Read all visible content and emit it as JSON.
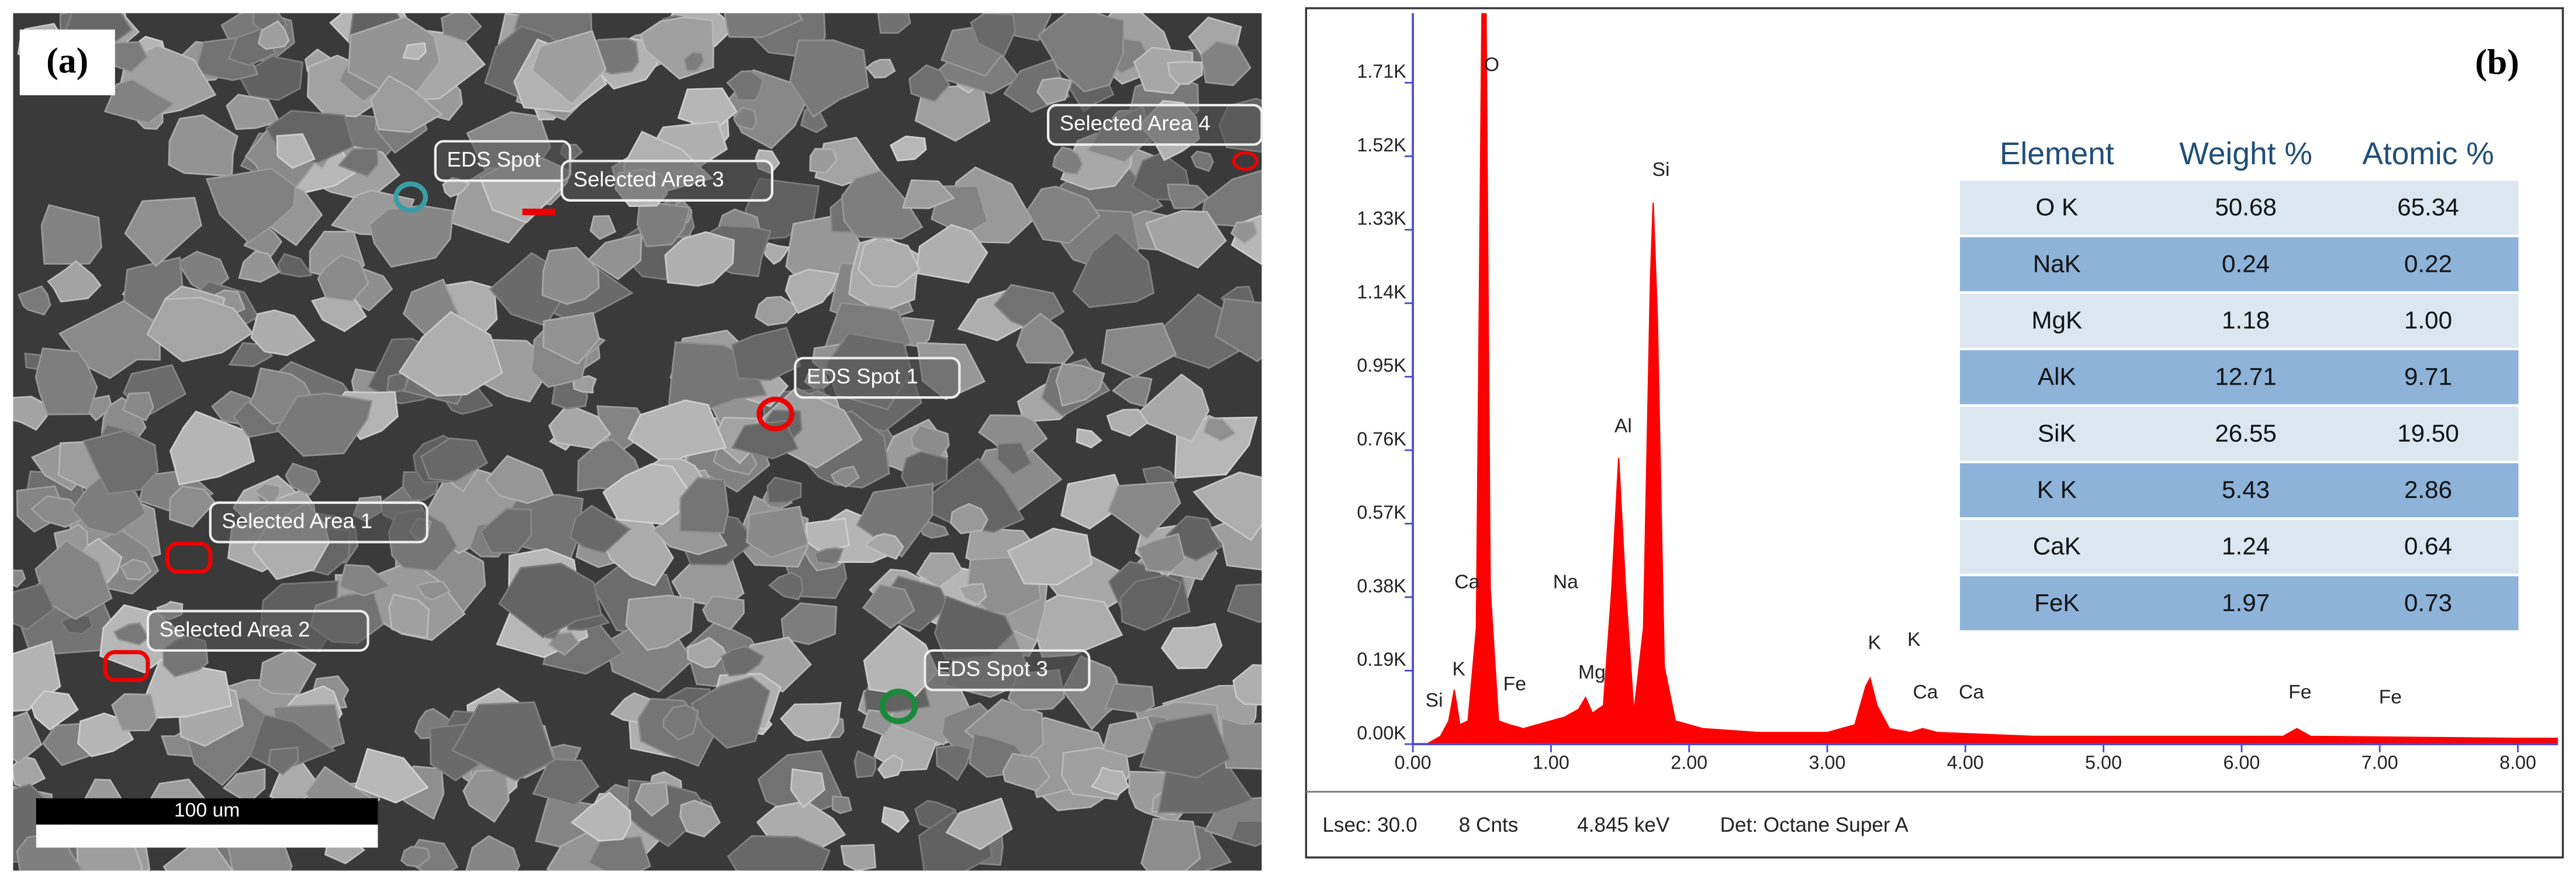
{
  "panel_a": {
    "label": "(a)",
    "scale_bar": "100 um",
    "annotations": [
      "EDS Spot",
      "Selected Area 3",
      "Selected Area 4",
      "EDS Spot 1",
      "Selected Area 1",
      "Selected Area 2",
      "EDS Spot 3"
    ]
  },
  "panel_b": {
    "label": "(b)"
  },
  "chart_data": {
    "type": "area",
    "color": "#ff0000",
    "x": [
      0.1,
      0.2,
      0.26,
      0.3,
      0.34,
      0.4,
      0.46,
      0.5,
      0.53,
      0.56,
      0.62,
      0.7,
      0.8,
      0.9,
      1.0,
      1.1,
      1.2,
      1.25,
      1.3,
      1.38,
      1.44,
      1.49,
      1.54,
      1.6,
      1.67,
      1.72,
      1.74,
      1.77,
      1.82,
      1.9,
      2.1,
      2.5,
      3.0,
      3.2,
      3.28,
      3.31,
      3.36,
      3.45,
      3.6,
      3.69,
      3.8,
      4.5,
      5.5,
      6.3,
      6.4,
      6.5,
      8.0,
      8.29
    ],
    "values": [
      0,
      0.02,
      0.06,
      0.14,
      0.05,
      0.06,
      0.3,
      1.89,
      1.89,
      0.4,
      0.06,
      0.05,
      0.04,
      0.05,
      0.06,
      0.07,
      0.09,
      0.12,
      0.08,
      0.1,
      0.4,
      0.74,
      0.4,
      0.08,
      0.3,
      1.2,
      1.4,
      1.1,
      0.2,
      0.06,
      0.04,
      0.03,
      0.03,
      0.05,
      0.15,
      0.17,
      0.1,
      0.04,
      0.03,
      0.04,
      0.03,
      0.02,
      0.02,
      0.02,
      0.04,
      0.02,
      0.015,
      0.015
    ],
    "xlim": [
      0,
      8.29
    ],
    "ylim": [
      0,
      1.89
    ],
    "xticks": [
      {
        "value": 0,
        "label": "0.00"
      },
      {
        "value": 1,
        "label": "1.00"
      },
      {
        "value": 2,
        "label": "2.00"
      },
      {
        "value": 3,
        "label": "3.00"
      },
      {
        "value": 4,
        "label": "4.00"
      },
      {
        "value": 5,
        "label": "5.00"
      },
      {
        "value": 6,
        "label": "6.00"
      },
      {
        "value": 7,
        "label": "7.00"
      },
      {
        "value": 8,
        "label": "8.00"
      }
    ],
    "yticks": [
      {
        "value": 0,
        "label": "0.00K"
      },
      {
        "value": 0.19,
        "label": "0.19K"
      },
      {
        "value": 0.38,
        "label": "0.38K"
      },
      {
        "value": 0.57,
        "label": "0.57K"
      },
      {
        "value": 0.76,
        "label": "0.76K"
      },
      {
        "value": 0.95,
        "label": "0.95K"
      },
      {
        "value": 1.14,
        "label": "1.14K"
      },
      {
        "value": 1.33,
        "label": "1.33K"
      },
      {
        "value": 1.52,
        "label": "1.52K"
      },
      {
        "value": 1.71,
        "label": "1.71K"
      }
    ],
    "peak_labels": [
      "Si",
      "K",
      "Ca",
      "O",
      "Fe",
      "Na",
      "Mg",
      "Al",
      "Si",
      "K",
      "K",
      "Ca",
      "Ca",
      "Fe",
      "Fe"
    ]
  },
  "table": {
    "header": [
      "Element",
      "Weight %",
      "Atomic %"
    ],
    "rows": [
      [
        "O K",
        "50.68",
        "65.34"
      ],
      [
        "NaK",
        "0.24",
        "0.22"
      ],
      [
        "MgK",
        "1.18",
        "1.00"
      ],
      [
        "AlK",
        "12.71",
        "9.71"
      ],
      [
        "SiK",
        "26.55",
        "19.50"
      ],
      [
        "K K",
        "5.43",
        "2.86"
      ],
      [
        "CaK",
        "1.24",
        "0.64"
      ],
      [
        "FeK",
        "1.97",
        "0.73"
      ]
    ]
  },
  "footer": [
    "Lsec: 30.0",
    "8 Cnts",
    "4.845 keV",
    "Det: Octane Super A"
  ]
}
